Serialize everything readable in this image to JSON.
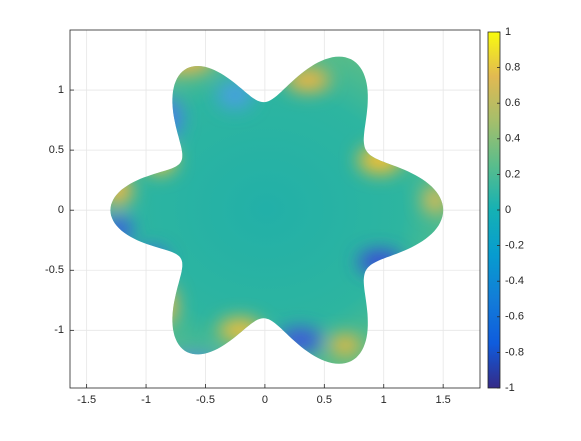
{
  "chart_data": {
    "type": "surface",
    "xlim": [
      -1.64,
      1.81
    ],
    "ylim": [
      -1.48,
      1.5
    ],
    "xticks": [
      -1.5,
      -1,
      -0.5,
      0,
      0.5,
      1,
      1.5
    ],
    "yticks": [
      -1,
      -0.5,
      0,
      0.5,
      1
    ],
    "grid": true,
    "colorbar": {
      "clim": [
        -1,
        1
      ],
      "ticks": [
        -1,
        -0.8,
        -0.6,
        -0.4,
        -0.2,
        0,
        0.2,
        0.4,
        0.6,
        0.8,
        1
      ]
    }
  }
}
